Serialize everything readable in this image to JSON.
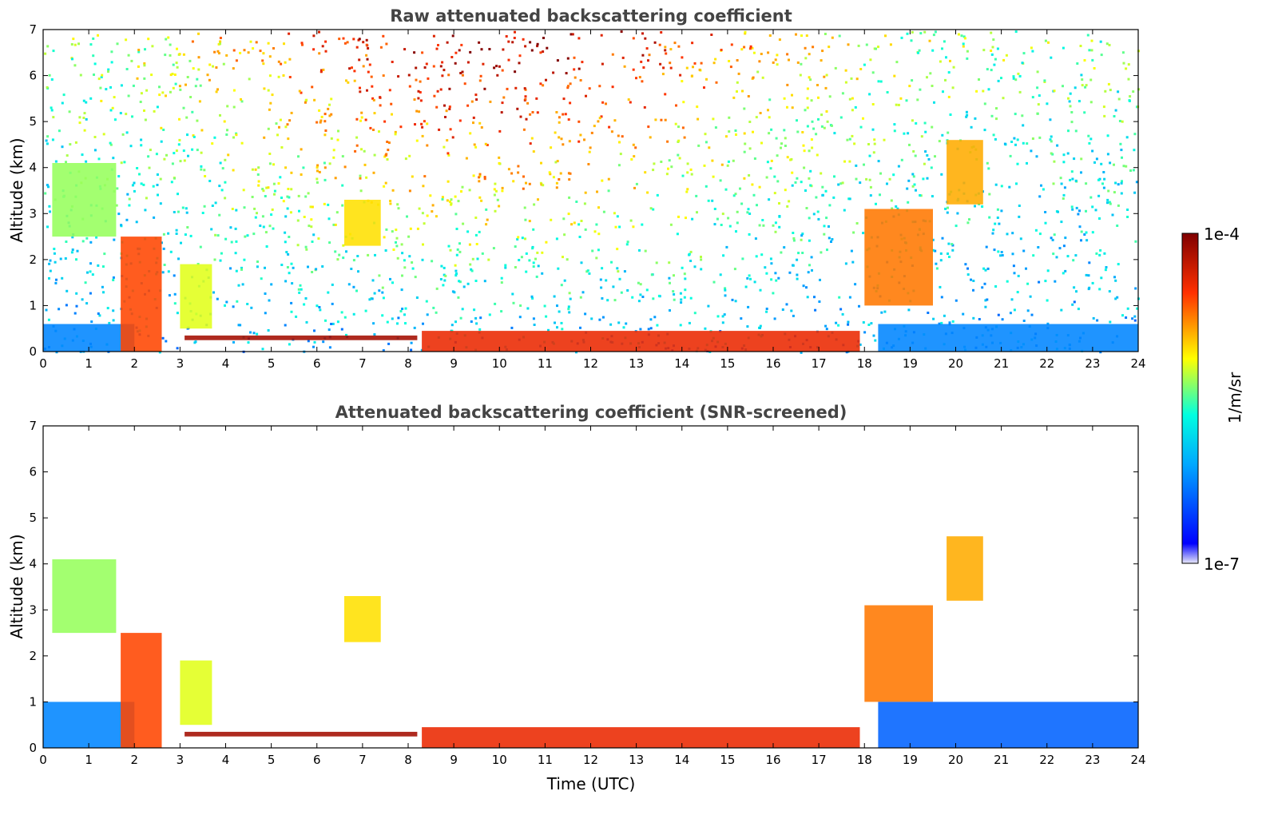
{
  "chart_data": [
    {
      "type": "heatmap",
      "title": "Raw attenuated backscattering coefficient",
      "xlabel": "",
      "ylabel": "Altitude (km)",
      "xlim": [
        0,
        24
      ],
      "ylim": [
        0,
        7
      ],
      "xticks": [
        "0",
        "1",
        "2",
        "3",
        "4",
        "5",
        "6",
        "7",
        "8",
        "9",
        "10",
        "11",
        "12",
        "13",
        "14",
        "15",
        "16",
        "17",
        "18",
        "19",
        "20",
        "21",
        "22",
        "23",
        "24"
      ],
      "yticks": [
        "0",
        "1",
        "2",
        "3",
        "4",
        "5",
        "6",
        "7"
      ],
      "grid": false,
      "features": [
        {
          "t0": 0.0,
          "t1": 2.0,
          "z0": 0.0,
          "z1": 0.6,
          "level": 0.25
        },
        {
          "t0": 1.7,
          "t1": 2.6,
          "z0": 0.0,
          "z1": 2.5,
          "level": 0.8
        },
        {
          "t0": 0.2,
          "t1": 1.6,
          "z0": 2.5,
          "z1": 4.1,
          "level": 0.55
        },
        {
          "t0": 3.0,
          "t1": 3.7,
          "z0": 0.5,
          "z1": 1.9,
          "level": 0.6
        },
        {
          "t0": 3.1,
          "t1": 8.2,
          "z0": 0.25,
          "z1": 0.35,
          "level": 0.95
        },
        {
          "t0": 6.6,
          "t1": 7.4,
          "z0": 2.3,
          "z1": 3.3,
          "level": 0.65
        },
        {
          "t0": 8.3,
          "t1": 17.9,
          "z0": 0.0,
          "z1": 0.45,
          "level": 0.85
        },
        {
          "t0": 18.0,
          "t1": 19.5,
          "z0": 1.0,
          "z1": 3.1,
          "level": 0.75
        },
        {
          "t0": 19.8,
          "t1": 20.6,
          "z0": 3.2,
          "z1": 4.6,
          "level": 0.7
        },
        {
          "t0": 18.3,
          "t1": 24.0,
          "z0": 0.0,
          "z1": 0.6,
          "level": 0.25
        }
      ]
    },
    {
      "type": "heatmap",
      "title": "Attenuated backscattering coefficient (SNR-screened)",
      "xlabel": "Time (UTC)",
      "ylabel": "Altitude (km)",
      "xlim": [
        0,
        24
      ],
      "ylim": [
        0,
        7
      ],
      "xticks": [
        "0",
        "1",
        "2",
        "3",
        "4",
        "5",
        "6",
        "7",
        "8",
        "9",
        "10",
        "11",
        "12",
        "13",
        "14",
        "15",
        "16",
        "17",
        "18",
        "19",
        "20",
        "21",
        "22",
        "23",
        "24"
      ],
      "yticks": [
        "0",
        "1",
        "2",
        "3",
        "4",
        "5",
        "6",
        "7"
      ],
      "grid": false,
      "features": [
        {
          "t0": 0.0,
          "t1": 2.0,
          "z0": 0.0,
          "z1": 1.0,
          "level": 0.25
        },
        {
          "t0": 1.7,
          "t1": 2.6,
          "z0": 0.0,
          "z1": 2.5,
          "level": 0.8
        },
        {
          "t0": 0.2,
          "t1": 1.6,
          "z0": 2.5,
          "z1": 4.1,
          "level": 0.55
        },
        {
          "t0": 3.0,
          "t1": 3.7,
          "z0": 0.5,
          "z1": 1.9,
          "level": 0.6
        },
        {
          "t0": 3.1,
          "t1": 8.2,
          "z0": 0.25,
          "z1": 0.35,
          "level": 0.95
        },
        {
          "t0": 6.6,
          "t1": 7.4,
          "z0": 2.3,
          "z1": 3.3,
          "level": 0.65
        },
        {
          "t0": 8.3,
          "t1": 17.9,
          "z0": 0.0,
          "z1": 0.45,
          "level": 0.85
        },
        {
          "t0": 18.0,
          "t1": 19.5,
          "z0": 1.0,
          "z1": 3.1,
          "level": 0.75
        },
        {
          "t0": 19.8,
          "t1": 20.6,
          "z0": 3.2,
          "z1": 4.6,
          "level": 0.7
        },
        {
          "t0": 18.3,
          "t1": 24.0,
          "z0": 0.0,
          "z1": 1.0,
          "level": 0.2
        }
      ]
    }
  ],
  "colorbar": {
    "label": "1/m/sr",
    "min_label": "1e-7",
    "max_label": "1e-4",
    "colormap": "jet",
    "colors": [
      "#e8e8f8",
      "#0000ff",
      "#00ffff",
      "#ffff00",
      "#ff0000",
      "#800000"
    ]
  }
}
